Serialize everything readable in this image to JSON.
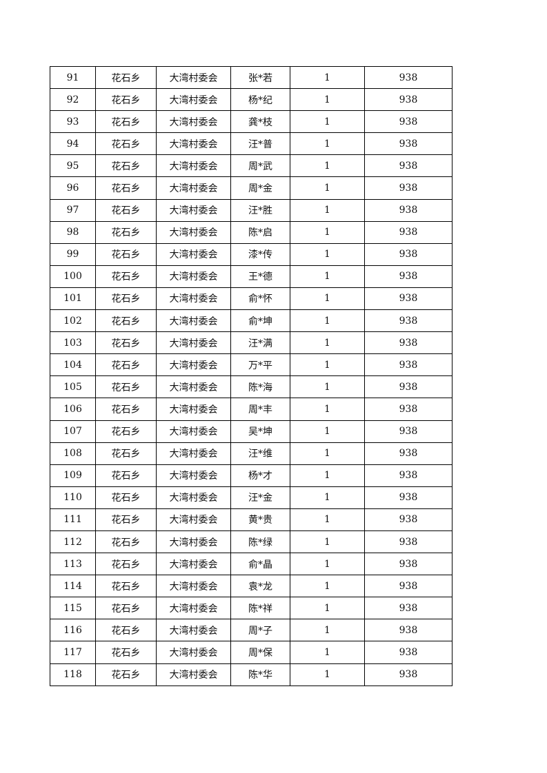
{
  "table": {
    "rows": [
      [
        "91",
        "花石乡",
        "大湾村委会",
        "张*若",
        "1",
        "938"
      ],
      [
        "92",
        "花石乡",
        "大湾村委会",
        "杨*纪",
        "1",
        "938"
      ],
      [
        "93",
        "花石乡",
        "大湾村委会",
        "龚*枝",
        "1",
        "938"
      ],
      [
        "94",
        "花石乡",
        "大湾村委会",
        "汪*普",
        "1",
        "938"
      ],
      [
        "95",
        "花石乡",
        "大湾村委会",
        "周*武",
        "1",
        "938"
      ],
      [
        "96",
        "花石乡",
        "大湾村委会",
        "周*金",
        "1",
        "938"
      ],
      [
        "97",
        "花石乡",
        "大湾村委会",
        "汪*胜",
        "1",
        "938"
      ],
      [
        "98",
        "花石乡",
        "大湾村委会",
        "陈*启",
        "1",
        "938"
      ],
      [
        "99",
        "花石乡",
        "大湾村委会",
        "漆*传",
        "1",
        "938"
      ],
      [
        "100",
        "花石乡",
        "大湾村委会",
        "王*德",
        "1",
        "938"
      ],
      [
        "101",
        "花石乡",
        "大湾村委会",
        "俞*怀",
        "1",
        "938"
      ],
      [
        "102",
        "花石乡",
        "大湾村委会",
        "俞*坤",
        "1",
        "938"
      ],
      [
        "103",
        "花石乡",
        "大湾村委会",
        "汪*满",
        "1",
        "938"
      ],
      [
        "104",
        "花石乡",
        "大湾村委会",
        "万*平",
        "1",
        "938"
      ],
      [
        "105",
        "花石乡",
        "大湾村委会",
        "陈*海",
        "1",
        "938"
      ],
      [
        "106",
        "花石乡",
        "大湾村委会",
        "周*丰",
        "1",
        "938"
      ],
      [
        "107",
        "花石乡",
        "大湾村委会",
        "吴*坤",
        "1",
        "938"
      ],
      [
        "108",
        "花石乡",
        "大湾村委会",
        "汪*维",
        "1",
        "938"
      ],
      [
        "109",
        "花石乡",
        "大湾村委会",
        "杨*才",
        "1",
        "938"
      ],
      [
        "110",
        "花石乡",
        "大湾村委会",
        "汪*金",
        "1",
        "938"
      ],
      [
        "111",
        "花石乡",
        "大湾村委会",
        "黄*贵",
        "1",
        "938"
      ],
      [
        "112",
        "花石乡",
        "大湾村委会",
        "陈*绿",
        "1",
        "938"
      ],
      [
        "113",
        "花石乡",
        "大湾村委会",
        "俞*晶",
        "1",
        "938"
      ],
      [
        "114",
        "花石乡",
        "大湾村委会",
        "袁*龙",
        "1",
        "938"
      ],
      [
        "115",
        "花石乡",
        "大湾村委会",
        "陈*祥",
        "1",
        "938"
      ],
      [
        "116",
        "花石乡",
        "大湾村委会",
        "周*子",
        "1",
        "938"
      ],
      [
        "117",
        "花石乡",
        "大湾村委会",
        "周*保",
        "1",
        "938"
      ],
      [
        "118",
        "花石乡",
        "大湾村委会",
        "陈*华",
        "1",
        "938"
      ]
    ]
  }
}
